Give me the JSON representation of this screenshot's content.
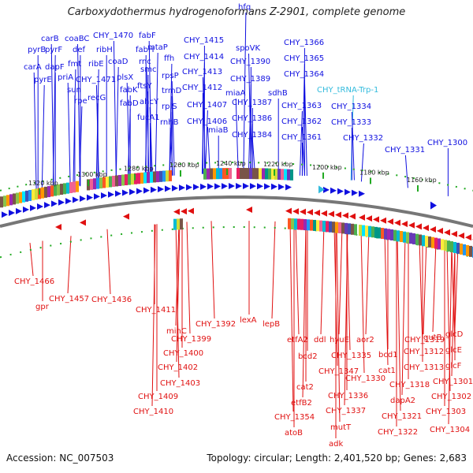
{
  "title": "Carboxydothermus hydrogenoformans Z-2901, complete genome",
  "footer": {
    "accession": "Accession: NC_007503",
    "topology": "Topology: circular; Length: 2,401,520 bp; Genes: 2,683"
  },
  "colors": {
    "plus_strand": "#1010e0",
    "minus_strand": "#e01010",
    "trna": "#33bbdd",
    "backbone": "#777777",
    "tick_dots": "#22aa22"
  },
  "scale_labels": [
    "1320 kbp",
    "1300 kbp",
    "1280 kbp",
    "1260 kbp",
    "1240 kbp",
    "1220 kbp",
    "1200 kbp",
    "1180 kbp",
    "1160 kbp"
  ],
  "top_labels": [
    "carB",
    "pyrB",
    "pyrF",
    "carA",
    "dapF",
    "pyrE",
    "coaBC",
    "def",
    "fmt",
    "priA",
    "sun",
    "rpe",
    "CHY_1470",
    "ribH",
    "ribE",
    "CHY_1471",
    "recG",
    "coaD",
    "plsX",
    "fabK",
    "fabD",
    "fabF",
    "fabH",
    "mtaP",
    "rnc",
    "smc",
    "ftsY",
    "ahcY",
    "fucA1",
    "ffh",
    "rpsP",
    "trmD",
    "rplS",
    "rnhB",
    "CHY_1415",
    "CHY_1414",
    "CHY_1413",
    "CHY_1412",
    "CHY_1407",
    "CHY_1406",
    "miaB",
    "hfq",
    "spoVK",
    "CHY_1390",
    "CHY_1389",
    "miaA",
    "CHY_1387",
    "CHY_1386",
    "CHY_1384",
    "CHY_1366",
    "CHY_1365",
    "CHY_1364",
    "sdhB",
    "CHY_1363",
    "CHY_1362",
    "CHY_1361",
    "CHY_tRNA-Trp-1",
    "CHY_1334",
    "CHY_1333",
    "CHY_1332",
    "CHY_1331",
    "CHY_1300"
  ],
  "bottom_labels": [
    "CHY_1466",
    "gpr",
    "CHY_1457",
    "CHY_1436",
    "CHY_1411",
    "minC",
    "CHY_1399",
    "CHY_1400",
    "CHY_1402",
    "CHY_1403",
    "CHY_1409",
    "CHY_1410",
    "CHY_1392",
    "lexA",
    "lepB",
    "etfA2",
    "bcd2",
    "ddl",
    "CHY_1347",
    "cat2",
    "etfB2",
    "CHY_1354",
    "atoB",
    "hyuE",
    "CHY_1335",
    "CHY_1336",
    "CHY_1337",
    "mutT",
    "adk",
    "aor2",
    "CHY_1330",
    "bcd1",
    "CHY_1319",
    "cat1",
    "CHY_1318",
    "dapA2",
    "CHY_1321",
    "CHY_1322",
    "gutB",
    "CHY_1312",
    "CHY_1313",
    "glcD",
    "glcE",
    "glcF",
    "CHY_1301",
    "CHY_1302",
    "CHY_1303",
    "CHY_1304"
  ]
}
